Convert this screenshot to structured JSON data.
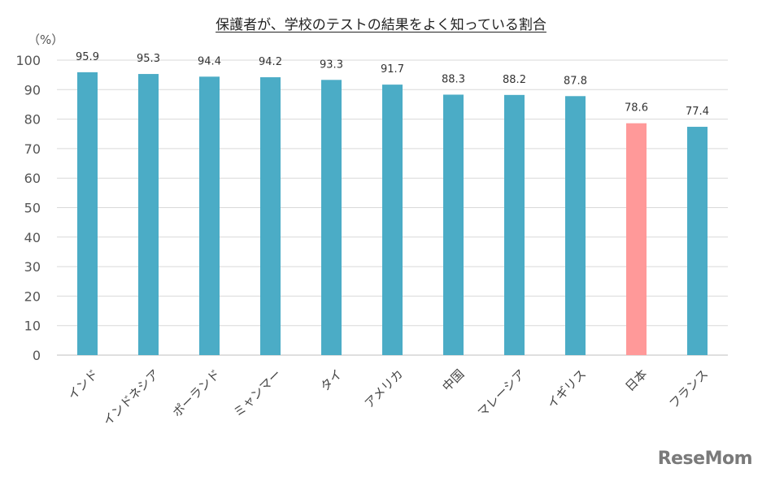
{
  "chart_data": {
    "type": "bar",
    "title": "保護者が、学校のテストの結果をよく知っている割合",
    "unit_label": "（%）",
    "categories": [
      "インド",
      "インドネシア",
      "ポーランド",
      "ミャンマー",
      "タイ",
      "アメリカ",
      "中国",
      "マレーシア",
      "イギリス",
      "日本",
      "フランス"
    ],
    "values": [
      95.9,
      95.3,
      94.4,
      94.2,
      93.3,
      91.7,
      88.3,
      88.2,
      87.8,
      78.6,
      77.4
    ],
    "ylim": [
      0,
      100
    ],
    "yticks": [
      0,
      10,
      20,
      30,
      40,
      50,
      60,
      70,
      80,
      90,
      100
    ],
    "grid": true,
    "colors": {
      "default": "#4bacc6",
      "highlight": "#ff9999",
      "grid": "#d9d9d9",
      "axis": "#bfbfbf"
    },
    "highlight_category": "日本"
  },
  "watermark": "ReseMom"
}
